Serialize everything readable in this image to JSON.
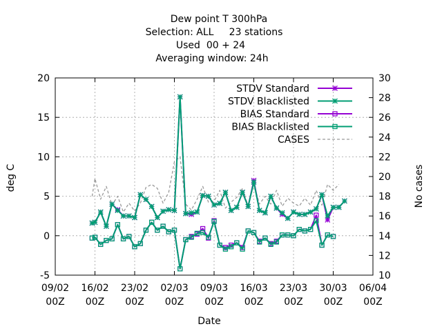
{
  "chart_data": {
    "type": "line",
    "title_lines": [
      "Dew point T 300hPa",
      "Selection: ALL     23 stations",
      "Used  00 + 24",
      "Averaging window: 24h"
    ],
    "xlabel": "Date",
    "ylabel": "deg C",
    "y2label": "No cases",
    "x_ticks": [
      {
        "day": 0,
        "label1": "09/02",
        "label2": "00Z"
      },
      {
        "day": 7,
        "label1": "16/02",
        "label2": "00Z"
      },
      {
        "day": 14,
        "label1": "23/02",
        "label2": "00Z"
      },
      {
        "day": 21,
        "label1": "02/03",
        "label2": "00Z"
      },
      {
        "day": 28,
        "label1": "09/03",
        "label2": "00Z"
      },
      {
        "day": 35,
        "label1": "16/03",
        "label2": "00Z"
      },
      {
        "day": 42,
        "label1": "23/03",
        "label2": "00Z"
      },
      {
        "day": 49,
        "label1": "30/03",
        "label2": "00Z"
      },
      {
        "day": 56,
        "label1": "06/04",
        "label2": "00Z"
      }
    ],
    "xlim": [
      0,
      56
    ],
    "ylim": [
      -5,
      20
    ],
    "y2lim": [
      10,
      30
    ],
    "y_ticks": [
      -5,
      0,
      5,
      10,
      15,
      20
    ],
    "y2_ticks": [
      10,
      12,
      14,
      16,
      18,
      20,
      22,
      24,
      26,
      28,
      30
    ],
    "grid": true,
    "legend_position": "top-right",
    "x": [
      6.5,
      7,
      8,
      9,
      10,
      11,
      12,
      13,
      14,
      15,
      16,
      17,
      18,
      19,
      20,
      21,
      22,
      23,
      24,
      25,
      26,
      27,
      28,
      29,
      30,
      31,
      32,
      33,
      34,
      35,
      36,
      37,
      38,
      39,
      40,
      41,
      42,
      43,
      44,
      45,
      46,
      47,
      48,
      49,
      50,
      51,
      52
    ],
    "series": [
      {
        "name": "STDV Standard",
        "color": "#9400d3",
        "marker": "star",
        "axis": "y",
        "values": [
          1.6,
          1.7,
          3.0,
          1.2,
          4.0,
          3.3,
          2.5,
          2.5,
          2.3,
          5.2,
          4.6,
          3.7,
          2.3,
          3.1,
          3.3,
          3.2,
          17.6,
          2.8,
          2.7,
          3.0,
          5.1,
          5.0,
          3.9,
          4.1,
          5.5,
          3.2,
          3.6,
          5.5,
          3.7,
          7.0,
          3.2,
          2.9,
          5.0,
          3.5,
          2.7,
          2.2,
          3.0,
          2.7,
          2.7,
          3.0,
          3.4,
          5.2,
          2.0,
          3.6,
          3.6,
          4.4,
          null
        ]
      },
      {
        "name": "STDV Blacklisted",
        "color": "#009e73",
        "marker": "star",
        "axis": "y",
        "values": [
          1.6,
          1.7,
          3.0,
          1.2,
          4.0,
          3.2,
          2.5,
          2.5,
          2.3,
          5.2,
          4.6,
          3.7,
          2.3,
          3.1,
          3.3,
          3.2,
          17.6,
          2.8,
          2.9,
          3.0,
          5.1,
          5.0,
          3.9,
          4.1,
          5.5,
          3.2,
          3.6,
          5.5,
          3.7,
          6.8,
          3.2,
          2.9,
          5.0,
          3.5,
          2.9,
          2.2,
          3.0,
          2.7,
          2.7,
          3.0,
          3.4,
          5.2,
          2.5,
          3.6,
          3.6,
          4.4,
          null
        ]
      },
      {
        "name": "BIAS Standard",
        "color": "#9400d3",
        "marker": "square",
        "axis": "y",
        "values": [
          -0.3,
          -0.2,
          -1.1,
          -0.6,
          -0.4,
          1.4,
          -0.4,
          -0.1,
          -1.4,
          -1.0,
          0.7,
          1.7,
          0.7,
          1.2,
          0.5,
          0.7,
          -4.2,
          -0.5,
          -0.1,
          0.2,
          0.9,
          -0.3,
          1.9,
          -1.2,
          -1.5,
          -1.2,
          -0.9,
          -1.5,
          0.6,
          0.4,
          -0.7,
          -0.3,
          -1.0,
          -0.7,
          0.1,
          0.1,
          0.0,
          0.8,
          0.6,
          0.8,
          2.6,
          -1.2,
          0.1,
          -0.1,
          null,
          null,
          null
        ]
      },
      {
        "name": "BIAS Blacklisted",
        "color": "#009e73",
        "marker": "square",
        "axis": "y",
        "values": [
          -0.3,
          -0.2,
          -1.1,
          -0.6,
          -0.4,
          1.4,
          -0.4,
          -0.1,
          -1.4,
          -1.0,
          0.7,
          1.7,
          0.7,
          1.2,
          0.5,
          0.7,
          -4.2,
          -0.5,
          -0.2,
          0.3,
          0.4,
          -0.2,
          1.8,
          -1.2,
          -1.7,
          -1.4,
          -0.9,
          -1.7,
          0.6,
          0.4,
          -0.8,
          -0.3,
          -1.1,
          -0.8,
          0.1,
          0.1,
          0.0,
          0.8,
          0.6,
          0.8,
          1.9,
          -1.2,
          0.1,
          -0.1,
          null,
          null,
          null
        ]
      },
      {
        "name": "CASES",
        "color": "#999999",
        "marker": "none",
        "dash": true,
        "axis": "y2",
        "values": [
          18.0,
          19.8,
          17.7,
          19.0,
          17.1,
          18.0,
          16.4,
          17.3,
          16.5,
          17.3,
          18.9,
          19.2,
          18.8,
          17.3,
          18.4,
          21.5,
          22.0,
          17.2,
          16.6,
          17.7,
          19.0,
          17.4,
          17.5,
          18.6,
          16.8,
          17.4,
          17.9,
          18.8,
          17.0,
          19.2,
          17.2,
          18.0,
          17.2,
          18.6,
          17.0,
          17.8,
          17.3,
          17.0,
          17.8,
          17.1,
          18.6,
          17.1,
          19.2,
          18.6,
          19.2,
          null,
          null
        ]
      }
    ]
  }
}
